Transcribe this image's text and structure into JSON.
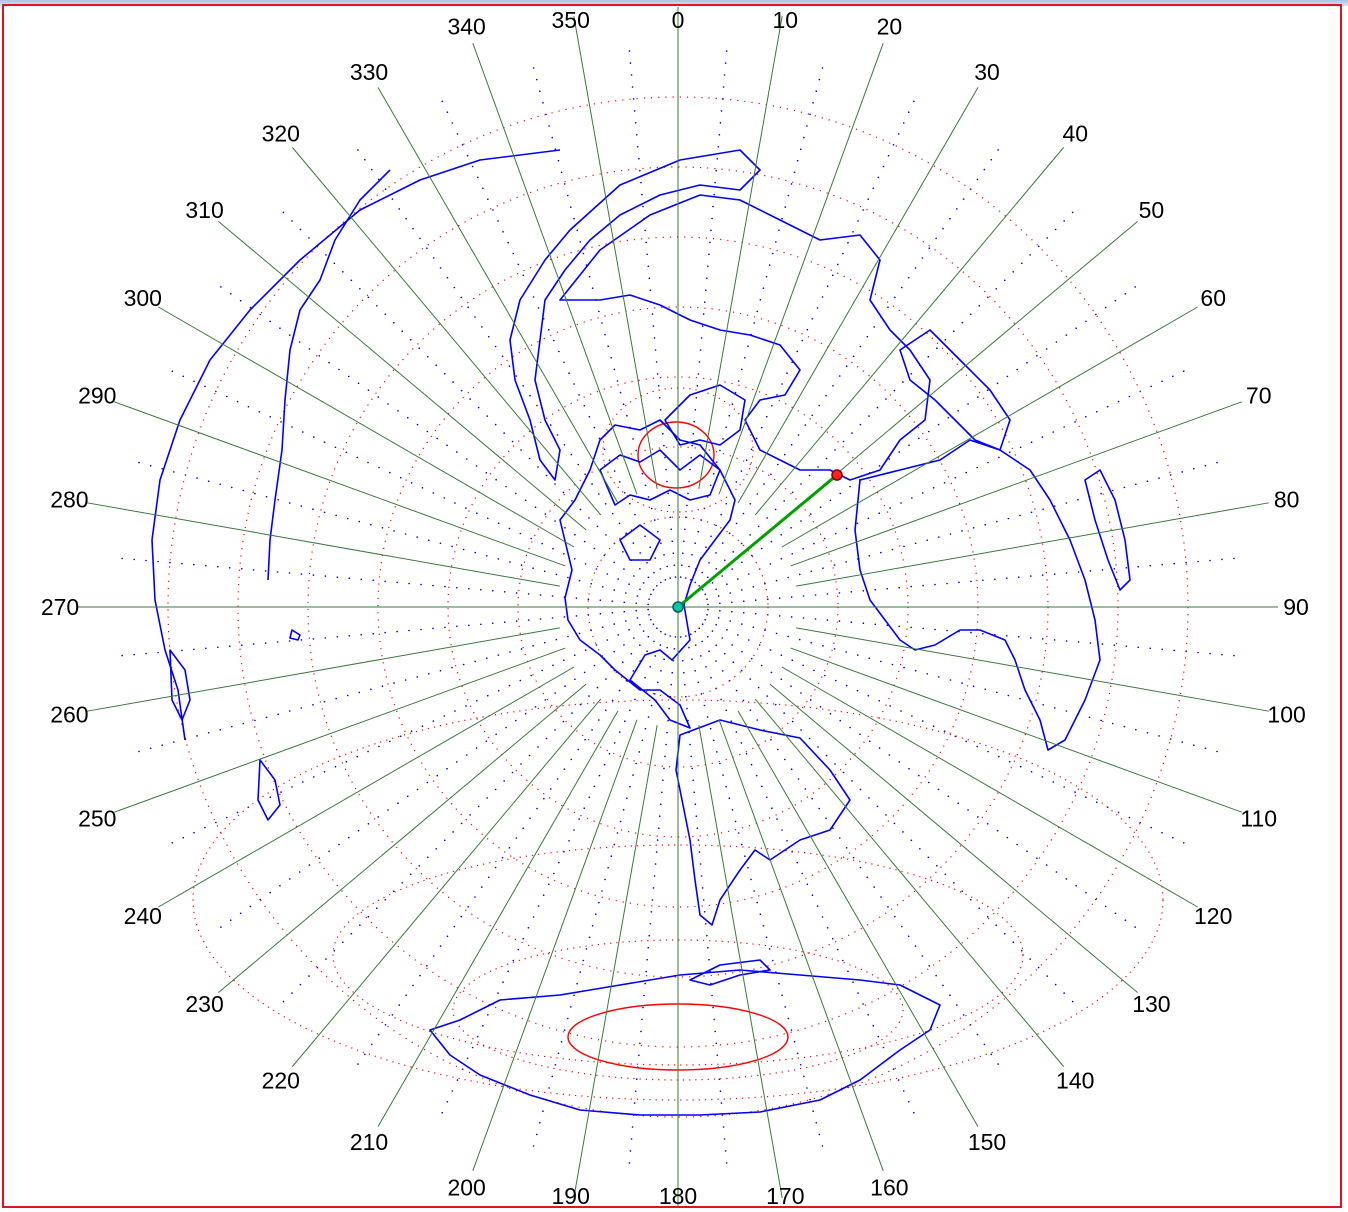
{
  "window": {
    "frame_color": "#e0141c"
  },
  "map": {
    "projection": "azimuthal-equidistant",
    "center_point": "green-dot",
    "target_point": "red-dot",
    "colors": {
      "coastline": "#0000ff",
      "bearing_line": "#3a7a3a",
      "great_circle_path": "#00a000",
      "distance_ring": "#ff0000",
      "graticule": "#0000ff"
    },
    "bearing_labels": [
      "0",
      "10",
      "20",
      "30",
      "40",
      "50",
      "60",
      "70",
      "80",
      "90",
      "100",
      "110",
      "120",
      "130",
      "140",
      "150",
      "160",
      "170",
      "180",
      "190",
      "200",
      "210",
      "220",
      "230",
      "240",
      "250",
      "260",
      "270",
      "280",
      "290",
      "300",
      "310",
      "320",
      "330",
      "340",
      "350"
    ]
  }
}
